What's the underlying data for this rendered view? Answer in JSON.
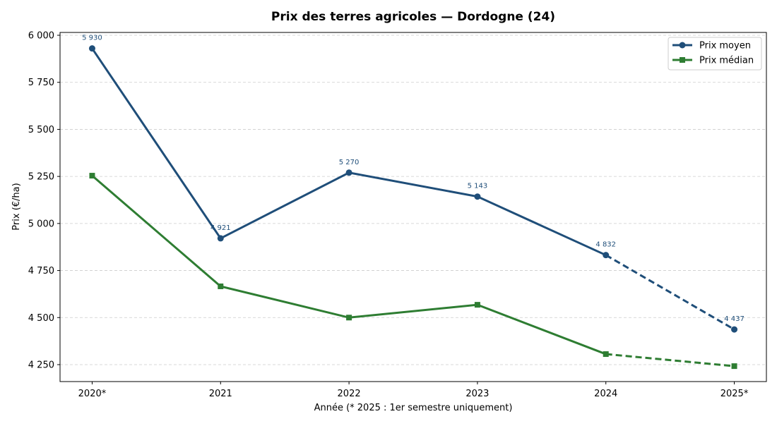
{
  "chart_data": {
    "type": "line",
    "title": "Prix des terres agricoles — Dordogne (24)",
    "xlabel": "Année (* 2025 : 1er semestre uniquement)",
    "ylabel": "Prix (€/ha)",
    "categories": [
      "2020*",
      "2021",
      "2022",
      "2023",
      "2024",
      "2025*"
    ],
    "ylim": [
      4160,
      6015
    ],
    "yticks": [
      4250,
      4500,
      4750,
      5000,
      5250,
      5500,
      5750,
      6000
    ],
    "ytick_labels": [
      "4 250",
      "4 500",
      "4 750",
      "5 000",
      "5 250",
      "5 500",
      "5 750",
      "6 000"
    ],
    "grid": "horizontal dashed",
    "legend_position": "top-right",
    "series": [
      {
        "name": "Prix moyen",
        "color": "#1f4e79",
        "marker": "circle",
        "values": [
          5930,
          4921,
          5270,
          5143,
          4832,
          4437
        ],
        "data_labels": [
          "5 930",
          "4 921",
          "5 270",
          "5 143",
          "4 832",
          "4 437"
        ],
        "dashed_last_segment": true
      },
      {
        "name": "Prix médian",
        "color": "#2e7d32",
        "marker": "square",
        "values": [
          5254,
          4666,
          4500,
          4568,
          4306,
          4242
        ],
        "dashed_last_segment": true
      }
    ]
  }
}
